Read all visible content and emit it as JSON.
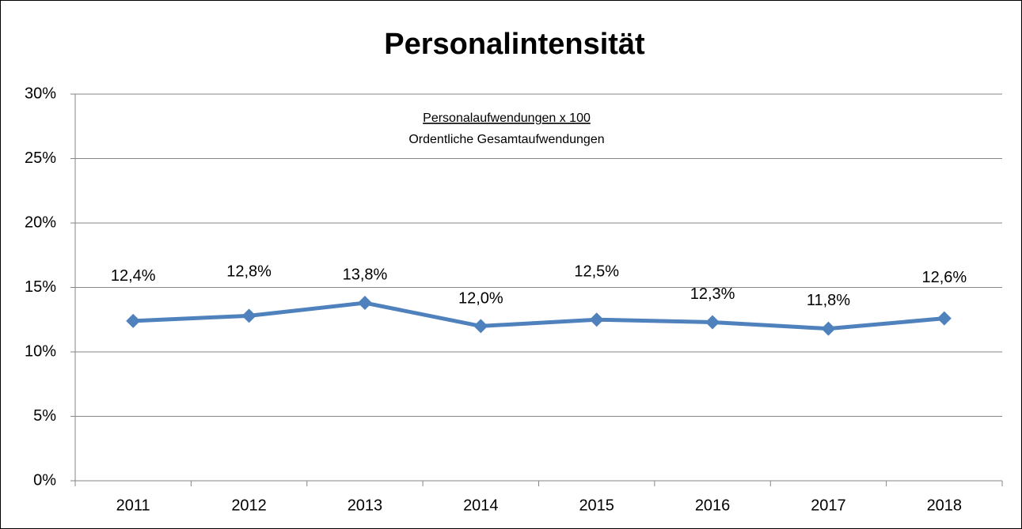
{
  "chart_data": {
    "type": "line",
    "title": "Personalintensität",
    "annotations": [
      "Personalaufwendungen x 100",
      "Ordentliche Gesamtaufwendungen"
    ],
    "categories": [
      "2011",
      "2012",
      "2013",
      "2014",
      "2015",
      "2016",
      "2017",
      "2018"
    ],
    "series": [
      {
        "name": "Personalintensität",
        "color": "#4f81bd",
        "values": [
          12.4,
          12.8,
          13.8,
          12.0,
          12.5,
          12.3,
          11.8,
          12.6
        ],
        "value_labels": [
          "12,4%",
          "12,8%",
          "13,8%",
          "12,0%",
          "12,5%",
          "12,3%",
          "11,8%",
          "12,6%"
        ]
      }
    ],
    "ylim": [
      0,
      30
    ],
    "yticks": [
      {
        "value": 0,
        "label": "0%"
      },
      {
        "value": 5,
        "label": "5%"
      },
      {
        "value": 10,
        "label": "10%"
      },
      {
        "value": 15,
        "label": "15%"
      },
      {
        "value": 20,
        "label": "20%"
      },
      {
        "value": 25,
        "label": "25%"
      },
      {
        "value": 30,
        "label": "30%"
      }
    ],
    "grid": true
  }
}
